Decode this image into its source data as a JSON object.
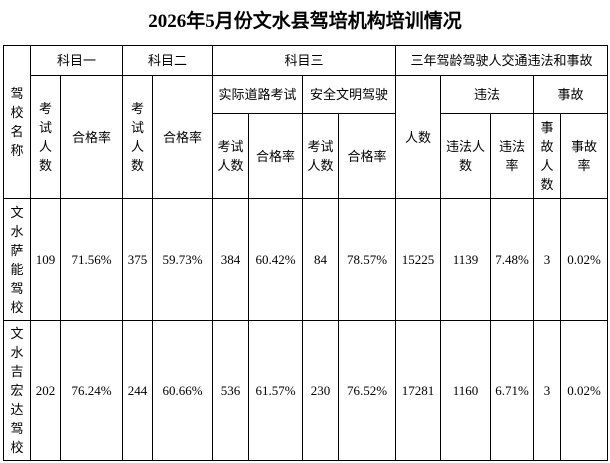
{
  "title": "2026年5月份文水县驾培机构培训情况",
  "table": {
    "header": [
      [
        "驾校名称",
        "科目一",
        "科目二",
        "科目三",
        "三年驾龄驾驶人交通违法和事故"
      ],
      [
        "考试人数",
        "合格率",
        "考试人数",
        "合格率",
        "实际道路考试",
        "安全文明驾驶",
        "人数",
        "违法",
        "事故"
      ],
      [
        "考试人数",
        "合格率",
        "考试人数",
        "合格率",
        "违法人数",
        "违法率",
        "事故人数",
        "事故率"
      ]
    ],
    "rows": [
      [
        "文水萨能驾校",
        109,
        "71.56%",
        375,
        "59.73%",
        384,
        "60.42%",
        84,
        "78.57%",
        15225,
        1139,
        "7.48%",
        3,
        "0.02%"
      ],
      [
        "文水吉宏达驾校",
        202,
        "76.24%",
        244,
        "60.66%",
        536,
        "61.57%",
        230,
        "76.52%",
        17281,
        1160,
        "6.71%",
        3,
        "0.02%"
      ]
    ]
  }
}
